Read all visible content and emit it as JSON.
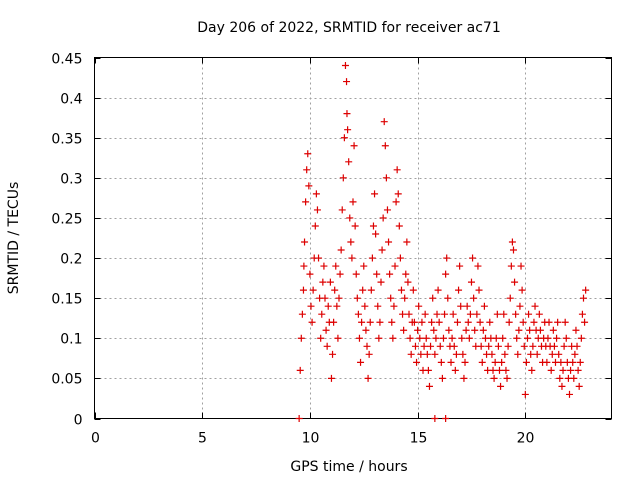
{
  "chart_data": {
    "type": "scatter",
    "title": "Day 206 of 2022, SRMTID for receiver ac71",
    "xlabel": "GPS time / hours",
    "ylabel": "SRMTID / TECUs",
    "xlim": [
      0,
      24
    ],
    "ylim": [
      0,
      0.45
    ],
    "grid": true,
    "marker": "+",
    "color": "#dd0000",
    "x_ticks": [
      0,
      5,
      10,
      15,
      20
    ],
    "x_tick_labels": [
      "0",
      "5",
      "10",
      "15",
      "20"
    ],
    "y_ticks": [
      0,
      0.05,
      0.1,
      0.15,
      0.2,
      0.25,
      0.3,
      0.35,
      0.4,
      0.45
    ],
    "y_tick_labels": [
      "0",
      "0.05",
      "0.1",
      "0.15",
      "0.2",
      "0.25",
      "0.3",
      "0.35",
      "0.4",
      "0.45"
    ],
    "series": [
      {
        "name": "SRMTID",
        "points": [
          [
            9.5,
            0.0
          ],
          [
            15.8,
            0.0
          ],
          [
            16.3,
            0.0
          ],
          [
            9.55,
            0.06
          ],
          [
            9.6,
            0.1
          ],
          [
            9.65,
            0.13
          ],
          [
            9.7,
            0.16
          ],
          [
            9.72,
            0.19
          ],
          [
            9.75,
            0.22
          ],
          [
            9.8,
            0.27
          ],
          [
            9.85,
            0.31
          ],
          [
            9.9,
            0.33
          ],
          [
            9.95,
            0.29
          ],
          [
            10.0,
            0.18
          ],
          [
            10.05,
            0.14
          ],
          [
            10.1,
            0.12
          ],
          [
            10.15,
            0.16
          ],
          [
            10.2,
            0.2
          ],
          [
            10.25,
            0.24
          ],
          [
            10.3,
            0.28
          ],
          [
            10.35,
            0.26
          ],
          [
            10.4,
            0.2
          ],
          [
            10.45,
            0.15
          ],
          [
            10.5,
            0.1
          ],
          [
            10.55,
            0.13
          ],
          [
            10.6,
            0.17
          ],
          [
            10.65,
            0.19
          ],
          [
            10.7,
            0.15
          ],
          [
            10.75,
            0.11
          ],
          [
            10.8,
            0.09
          ],
          [
            10.85,
            0.14
          ],
          [
            10.9,
            0.12
          ],
          [
            10.95,
            0.17
          ],
          [
            11.0,
            0.05
          ],
          [
            11.05,
            0.08
          ],
          [
            11.1,
            0.12
          ],
          [
            11.15,
            0.16
          ],
          [
            11.2,
            0.19
          ],
          [
            11.25,
            0.14
          ],
          [
            11.3,
            0.1
          ],
          [
            11.35,
            0.15
          ],
          [
            11.4,
            0.18
          ],
          [
            11.45,
            0.21
          ],
          [
            11.5,
            0.26
          ],
          [
            11.55,
            0.3
          ],
          [
            11.6,
            0.35
          ],
          [
            11.65,
            0.44
          ],
          [
            11.7,
            0.42
          ],
          [
            11.72,
            0.38
          ],
          [
            11.75,
            0.36
          ],
          [
            11.8,
            0.32
          ],
          [
            11.85,
            0.25
          ],
          [
            11.9,
            0.22
          ],
          [
            11.95,
            0.2
          ],
          [
            12.0,
            0.27
          ],
          [
            12.05,
            0.34
          ],
          [
            12.1,
            0.24
          ],
          [
            12.15,
            0.18
          ],
          [
            12.2,
            0.15
          ],
          [
            12.25,
            0.13
          ],
          [
            12.3,
            0.1
          ],
          [
            12.35,
            0.07
          ],
          [
            12.4,
            0.12
          ],
          [
            12.45,
            0.16
          ],
          [
            12.5,
            0.19
          ],
          [
            12.55,
            0.14
          ],
          [
            12.6,
            0.11
          ],
          [
            12.65,
            0.09
          ],
          [
            12.7,
            0.05
          ],
          [
            12.75,
            0.08
          ],
          [
            12.8,
            0.12
          ],
          [
            12.85,
            0.16
          ],
          [
            12.9,
            0.2
          ],
          [
            12.95,
            0.24
          ],
          [
            13.0,
            0.28
          ],
          [
            13.05,
            0.23
          ],
          [
            13.1,
            0.18
          ],
          [
            13.15,
            0.14
          ],
          [
            13.2,
            0.1
          ],
          [
            13.25,
            0.12
          ],
          [
            13.3,
            0.17
          ],
          [
            13.35,
            0.21
          ],
          [
            13.4,
            0.25
          ],
          [
            13.45,
            0.37
          ],
          [
            13.5,
            0.34
          ],
          [
            13.55,
            0.3
          ],
          [
            13.6,
            0.26
          ],
          [
            13.65,
            0.22
          ],
          [
            13.7,
            0.18
          ],
          [
            13.75,
            0.15
          ],
          [
            13.8,
            0.12
          ],
          [
            13.85,
            0.1
          ],
          [
            13.9,
            0.14
          ],
          [
            13.95,
            0.19
          ],
          [
            14.0,
            0.27
          ],
          [
            14.05,
            0.31
          ],
          [
            14.1,
            0.28
          ],
          [
            14.15,
            0.24
          ],
          [
            14.2,
            0.2
          ],
          [
            14.25,
            0.16
          ],
          [
            14.3,
            0.13
          ],
          [
            14.35,
            0.11
          ],
          [
            14.4,
            0.15
          ],
          [
            14.45,
            0.18
          ],
          [
            14.5,
            0.22
          ],
          [
            14.55,
            0.17
          ],
          [
            14.6,
            0.13
          ],
          [
            14.65,
            0.1
          ],
          [
            14.7,
            0.08
          ],
          [
            14.75,
            0.12
          ],
          [
            14.8,
            0.16
          ],
          [
            14.85,
            0.12
          ],
          [
            14.9,
            0.09
          ],
          [
            14.95,
            0.07
          ],
          [
            15.0,
            0.11
          ],
          [
            15.05,
            0.14
          ],
          [
            15.1,
            0.1
          ],
          [
            15.15,
            0.08
          ],
          [
            15.2,
            0.12
          ],
          [
            15.25,
            0.06
          ],
          [
            15.3,
            0.09
          ],
          [
            15.35,
            0.13
          ],
          [
            15.4,
            0.1
          ],
          [
            15.45,
            0.08
          ],
          [
            15.5,
            0.06
          ],
          [
            15.55,
            0.04
          ],
          [
            15.6,
            0.09
          ],
          [
            15.65,
            0.12
          ],
          [
            15.7,
            0.15
          ],
          [
            15.75,
            0.11
          ],
          [
            15.8,
            0.08
          ],
          [
            15.85,
            0.1
          ],
          [
            15.9,
            0.13
          ],
          [
            15.95,
            0.16
          ],
          [
            16.0,
            0.12
          ],
          [
            16.05,
            0.09
          ],
          [
            16.1,
            0.07
          ],
          [
            16.15,
            0.05
          ],
          [
            16.2,
            0.1
          ],
          [
            16.25,
            0.13
          ],
          [
            16.3,
            0.18
          ],
          [
            16.35,
            0.2
          ],
          [
            16.4,
            0.15
          ],
          [
            16.45,
            0.11
          ],
          [
            16.5,
            0.09
          ],
          [
            16.55,
            0.07
          ],
          [
            16.6,
            0.1
          ],
          [
            16.65,
            0.13
          ],
          [
            16.7,
            0.09
          ],
          [
            16.75,
            0.06
          ],
          [
            16.8,
            0.08
          ],
          [
            16.85,
            0.12
          ],
          [
            16.9,
            0.16
          ],
          [
            16.95,
            0.19
          ],
          [
            17.0,
            0.14
          ],
          [
            17.05,
            0.1
          ],
          [
            17.1,
            0.08
          ],
          [
            17.15,
            0.05
          ],
          [
            17.2,
            0.07
          ],
          [
            17.25,
            0.11
          ],
          [
            17.3,
            0.14
          ],
          [
            17.35,
            0.12
          ],
          [
            17.4,
            0.1
          ],
          [
            17.45,
            0.13
          ],
          [
            17.5,
            0.17
          ],
          [
            17.55,
            0.2
          ],
          [
            17.6,
            0.15
          ],
          [
            17.65,
            0.11
          ],
          [
            17.7,
            0.09
          ],
          [
            17.75,
            0.13
          ],
          [
            17.8,
            0.19
          ],
          [
            17.85,
            0.16
          ],
          [
            17.9,
            0.12
          ],
          [
            17.95,
            0.09
          ],
          [
            18.0,
            0.07
          ],
          [
            18.05,
            0.11
          ],
          [
            18.1,
            0.14
          ],
          [
            18.15,
            0.1
          ],
          [
            18.2,
            0.08
          ],
          [
            18.25,
            0.06
          ],
          [
            18.3,
            0.09
          ],
          [
            18.35,
            0.12
          ],
          [
            18.4,
            0.1
          ],
          [
            18.45,
            0.08
          ],
          [
            18.5,
            0.06
          ],
          [
            18.55,
            0.05
          ],
          [
            18.6,
            0.07
          ],
          [
            18.65,
            0.1
          ],
          [
            18.7,
            0.13
          ],
          [
            18.75,
            0.09
          ],
          [
            18.8,
            0.06
          ],
          [
            18.85,
            0.04
          ],
          [
            18.9,
            0.07
          ],
          [
            18.95,
            0.1
          ],
          [
            19.0,
            0.13
          ],
          [
            19.05,
            0.08
          ],
          [
            19.1,
            0.06
          ],
          [
            19.15,
            0.05
          ],
          [
            19.2,
            0.09
          ],
          [
            19.25,
            0.12
          ],
          [
            19.3,
            0.15
          ],
          [
            19.35,
            0.19
          ],
          [
            19.4,
            0.22
          ],
          [
            19.45,
            0.21
          ],
          [
            19.5,
            0.17
          ],
          [
            19.55,
            0.13
          ],
          [
            19.6,
            0.1
          ],
          [
            19.65,
            0.08
          ],
          [
            19.7,
            0.11
          ],
          [
            19.75,
            0.14
          ],
          [
            19.8,
            0.19
          ],
          [
            19.85,
            0.16
          ],
          [
            19.9,
            0.12
          ],
          [
            19.95,
            0.09
          ],
          [
            20.0,
            0.03
          ],
          [
            20.05,
            0.07
          ],
          [
            20.1,
            0.1
          ],
          [
            20.15,
            0.13
          ],
          [
            20.2,
            0.11
          ],
          [
            20.25,
            0.08
          ],
          [
            20.3,
            0.06
          ],
          [
            20.35,
            0.09
          ],
          [
            20.4,
            0.12
          ],
          [
            20.45,
            0.14
          ],
          [
            20.5,
            0.11
          ],
          [
            20.55,
            0.08
          ],
          [
            20.6,
            0.1
          ],
          [
            20.65,
            0.13
          ],
          [
            20.7,
            0.11
          ],
          [
            20.75,
            0.09
          ],
          [
            20.8,
            0.07
          ],
          [
            20.85,
            0.1
          ],
          [
            20.9,
            0.12
          ],
          [
            20.95,
            0.09
          ],
          [
            21.0,
            0.07
          ],
          [
            21.05,
            0.1
          ],
          [
            21.1,
            0.12
          ],
          [
            21.15,
            0.09
          ],
          [
            21.2,
            0.06
          ],
          [
            21.25,
            0.08
          ],
          [
            21.3,
            0.11
          ],
          [
            21.35,
            0.09
          ],
          [
            21.4,
            0.07
          ],
          [
            21.45,
            0.1
          ],
          [
            21.5,
            0.12
          ],
          [
            21.55,
            0.08
          ],
          [
            21.6,
            0.05
          ],
          [
            21.65,
            0.07
          ],
          [
            21.7,
            0.04
          ],
          [
            21.75,
            0.06
          ],
          [
            21.8,
            0.09
          ],
          [
            21.85,
            0.12
          ],
          [
            21.9,
            0.1
          ],
          [
            21.95,
            0.07
          ],
          [
            22.0,
            0.05
          ],
          [
            22.05,
            0.03
          ],
          [
            22.1,
            0.06
          ],
          [
            22.15,
            0.09
          ],
          [
            22.2,
            0.07
          ],
          [
            22.25,
            0.05
          ],
          [
            22.3,
            0.08
          ],
          [
            22.35,
            0.11
          ],
          [
            22.4,
            0.09
          ],
          [
            22.45,
            0.06
          ],
          [
            22.5,
            0.04
          ],
          [
            22.55,
            0.07
          ],
          [
            22.6,
            0.1
          ],
          [
            22.65,
            0.13
          ],
          [
            22.7,
            0.15
          ],
          [
            22.75,
            0.12
          ],
          [
            22.8,
            0.16
          ]
        ]
      }
    ]
  }
}
